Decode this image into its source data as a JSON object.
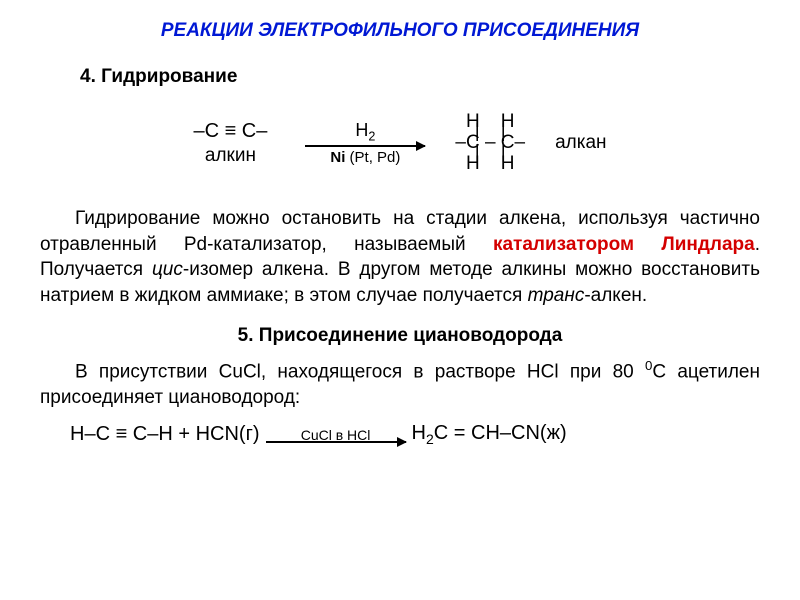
{
  "title": "РЕАКЦИИ ЭЛЕКТРОФИЛЬНОГО ПРИСОЕДИНЕНИЯ",
  "section4": {
    "heading": "4. Гидрирование",
    "reactant": "–C ≡ C–",
    "reactant_label": "алкин",
    "arrow_above": "H",
    "arrow_above_sub": "2",
    "arrow_below_main": "Ni",
    "arrow_below_paren": " (Pt, Pd)",
    "product_top": "H    H",
    "product_bonds": "|    |",
    "product_mid": "–C – C–",
    "product_bot": "H    H",
    "product_label": "алкан"
  },
  "body1_pre": "Гидрирование можно остановить на стадии алкена, используя частично отравленный Pd-катализатор, называ­емый ",
  "body1_red": "катализатором Линдлара",
  "body1_mid1": ". Получается ",
  "body1_it1": "цис",
  "body1_mid2": "-изомер алкена. В другом методе алкины можно восстановить натрием в жидком аммиаке; в этом случае получается ",
  "body1_it2": "транс",
  "body1_end": "-алкен.",
  "section5": {
    "heading": "5. Присоединение циановодорода",
    "body_pre": "В присутствии CuCl, находящегося в растворе HCl при 80 ",
    "body_sup": "0",
    "body_post": "С ацетилен присоединяет циановодород:",
    "reactant": "H–C ≡ C–H   +   HCN(г)",
    "arrow_above": "CuCl в HCl",
    "product_pre": "H",
    "product_sub": "2",
    "product_post": "C = CH–CN(ж)"
  }
}
